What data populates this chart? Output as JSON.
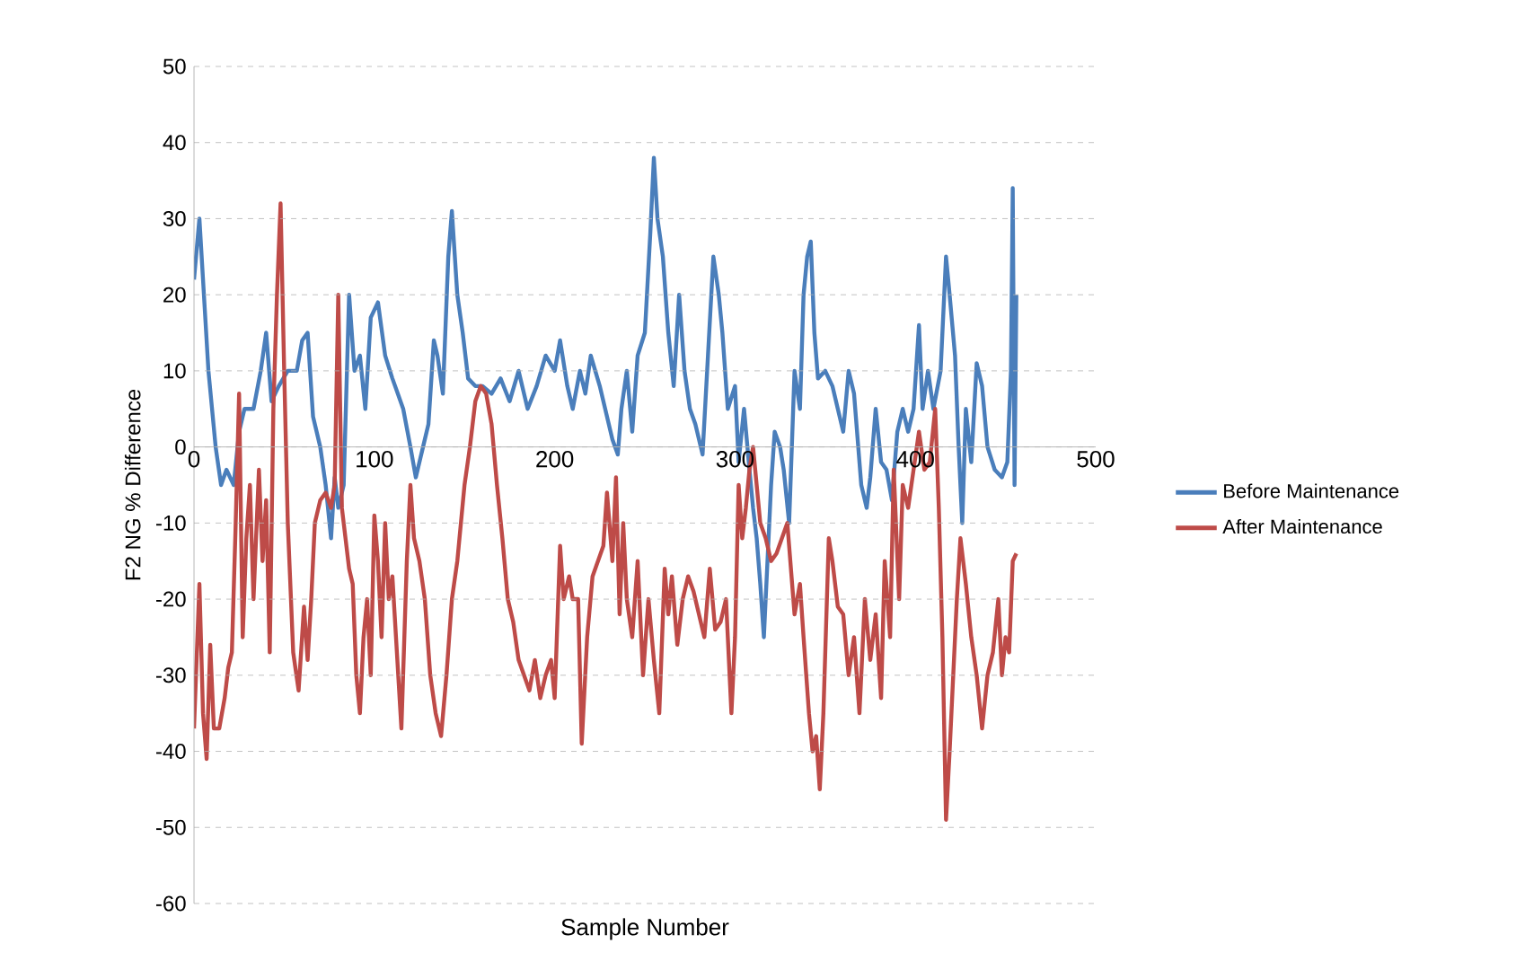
{
  "chart_data": {
    "type": "line",
    "xlabel": "Sample Number",
    "ylabel": "F2 NG % Difference",
    "xlim": [
      0,
      500
    ],
    "xticks": [
      0,
      100,
      200,
      300,
      400,
      500
    ],
    "ylim": [
      -60,
      50
    ],
    "yticks": [
      -60,
      -50,
      -40,
      -30,
      -20,
      -10,
      0,
      10,
      20,
      30,
      40,
      50
    ],
    "grid": "y",
    "legend": "right",
    "series": [
      {
        "name": "Before Maintenance",
        "color": "#4a7ebb",
        "x": [
          0,
          3,
          6,
          8,
          12,
          15,
          18,
          22,
          25,
          28,
          33,
          37,
          40,
          43,
          47,
          52,
          57,
          60,
          63,
          66,
          70,
          73,
          76,
          78,
          80,
          83,
          86,
          89,
          92,
          95,
          98,
          102,
          106,
          110,
          113,
          116,
          120,
          123,
          127,
          130,
          133,
          135,
          138,
          141,
          143,
          146,
          149,
          152,
          156,
          160,
          165,
          170,
          175,
          180,
          185,
          190,
          195,
          200,
          203,
          207,
          210,
          214,
          217,
          220,
          225,
          228,
          232,
          235,
          237,
          240,
          243,
          246,
          250,
          253,
          255,
          257,
          260,
          263,
          266,
          269,
          272,
          275,
          278,
          282,
          285,
          288,
          291,
          293,
          296,
          300,
          302,
          305,
          308,
          310,
          312,
          314,
          316,
          318,
          320,
          322,
          325,
          327,
          330,
          333,
          336,
          338,
          340,
          342,
          344,
          346,
          350,
          354,
          357,
          360,
          363,
          366,
          370,
          373,
          375,
          378,
          381,
          384,
          387,
          390,
          393,
          396,
          399,
          402,
          404,
          407,
          410,
          414,
          417,
          419,
          422,
          424,
          426,
          428,
          431,
          434,
          437,
          440,
          444,
          448,
          451,
          453,
          454,
          455,
          456
        ],
        "values": [
          22,
          30,
          18,
          10,
          0,
          -5,
          -3,
          -5,
          2,
          5,
          5,
          10,
          15,
          6,
          8,
          10,
          10,
          14,
          15,
          4,
          0,
          -5,
          -12,
          -4,
          -8,
          -5,
          20,
          10,
          12,
          5,
          17,
          19,
          12,
          9,
          7,
          5,
          0,
          -4,
          0,
          3,
          14,
          12,
          7,
          25,
          31,
          20,
          15,
          9,
          8,
          8,
          7,
          9,
          6,
          10,
          5,
          8,
          12,
          10,
          14,
          8,
          5,
          10,
          7,
          12,
          8,
          5,
          1,
          -1,
          5,
          10,
          2,
          12,
          15,
          28,
          38,
          30,
          25,
          15,
          8,
          20,
          10,
          5,
          3,
          -1,
          12,
          25,
          20,
          15,
          5,
          8,
          -2,
          5,
          -3,
          -8,
          -12,
          -18,
          -25,
          -15,
          -5,
          2,
          0,
          -3,
          -10,
          10,
          5,
          20,
          25,
          27,
          15,
          9,
          10,
          8,
          5,
          2,
          10,
          7,
          -5,
          -8,
          -4,
          5,
          -2,
          -3,
          -7,
          2,
          5,
          2,
          5,
          16,
          5,
          10,
          5,
          10,
          25,
          20,
          12,
          0,
          -10,
          5,
          -2,
          11,
          8,
          0,
          -3,
          -4,
          -2,
          10,
          34,
          -5,
          20
        ]
      },
      {
        "name": "After Maintenance",
        "color": "#be4b48",
        "x": [
          0,
          3,
          5,
          7,
          9,
          11,
          14,
          17,
          19,
          21,
          23,
          25,
          27,
          29,
          31,
          33,
          36,
          38,
          40,
          42,
          44,
          46,
          48,
          50,
          52,
          55,
          58,
          61,
          63,
          65,
          67,
          70,
          73,
          76,
          78,
          80,
          82,
          84,
          86,
          88,
          90,
          92,
          94,
          96,
          98,
          100,
          102,
          104,
          106,
          108,
          110,
          112,
          115,
          118,
          120,
          122,
          125,
          128,
          131,
          134,
          137,
          140,
          143,
          146,
          150,
          153,
          156,
          159,
          162,
          165,
          168,
          171,
          174,
          177,
          180,
          183,
          186,
          189,
          192,
          195,
          198,
          200,
          203,
          205,
          208,
          210,
          213,
          215,
          218,
          221,
          224,
          227,
          229,
          232,
          234,
          236,
          238,
          240,
          243,
          246,
          249,
          252,
          255,
          258,
          261,
          263,
          265,
          268,
          271,
          274,
          277,
          280,
          283,
          286,
          289,
          292,
          295,
          298,
          300,
          302,
          304,
          306,
          308,
          310,
          312,
          314,
          317,
          320,
          323,
          326,
          329,
          333,
          336,
          338,
          341,
          343,
          345,
          347,
          349,
          352,
          354,
          357,
          360,
          363,
          366,
          369,
          372,
          375,
          378,
          381,
          383,
          386,
          388,
          391,
          393,
          396,
          399,
          402,
          405,
          408,
          411,
          413,
          415,
          417,
          419,
          421,
          423,
          425,
          428,
          431,
          434,
          437,
          440,
          443,
          446,
          448,
          450,
          452,
          454,
          456
        ],
        "values": [
          -37,
          -18,
          -35,
          -41,
          -26,
          -37,
          -37,
          -33,
          -29,
          -27,
          -11,
          7,
          -25,
          -12,
          -5,
          -20,
          -3,
          -15,
          -7,
          -27,
          5,
          20,
          32,
          10,
          -10,
          -27,
          -32,
          -21,
          -28,
          -20,
          -10,
          -7,
          -6,
          -8,
          -5,
          20,
          -8,
          -12,
          -16,
          -18,
          -30,
          -35,
          -25,
          -20,
          -30,
          -9,
          -15,
          -25,
          -10,
          -20,
          -17,
          -25,
          -37,
          -15,
          -5,
          -12,
          -15,
          -20,
          -30,
          -35,
          -38,
          -30,
          -20,
          -15,
          -5,
          0,
          6,
          8,
          7,
          3,
          -5,
          -12,
          -20,
          -23,
          -28,
          -30,
          -32,
          -28,
          -33,
          -30,
          -28,
          -33,
          -13,
          -20,
          -17,
          -20,
          -20,
          -39,
          -25,
          -17,
          -15,
          -13,
          -6,
          -15,
          -4,
          -22,
          -10,
          -20,
          -25,
          -15,
          -30,
          -20,
          -28,
          -35,
          -16,
          -22,
          -17,
          -26,
          -20,
          -17,
          -19,
          -22,
          -25,
          -16,
          -24,
          -23,
          -20,
          -35,
          -25,
          -5,
          -12,
          -8,
          -3,
          0,
          -5,
          -10,
          -12,
          -15,
          -14,
          -12,
          -10,
          -22,
          -18,
          -25,
          -35,
          -40,
          -38,
          -45,
          -35,
          -12,
          -15,
          -21,
          -22,
          -30,
          -25,
          -35,
          -20,
          -28,
          -22,
          -33,
          -15,
          -25,
          -3,
          -20,
          -5,
          -8,
          -3,
          2,
          -3,
          -2,
          5,
          -8,
          -25,
          -49,
          -40,
          -30,
          -20,
          -12,
          -18,
          -25,
          -30,
          -37,
          -30,
          -27,
          -20,
          -30,
          -25,
          -27,
          -15,
          -14
        ]
      }
    ]
  }
}
